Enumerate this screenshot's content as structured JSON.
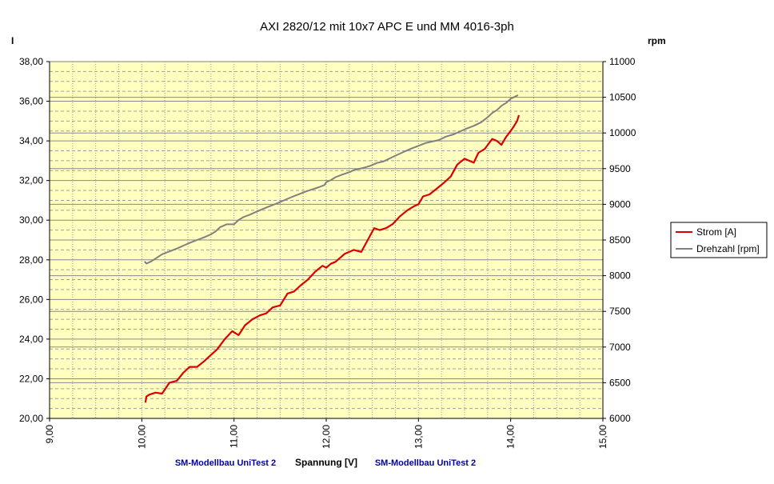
{
  "chart_data": {
    "type": "line",
    "title": "AXI 2820/12 mit 10x7 APC E und MM 4016-3ph",
    "xlabel": "Spannung [V]",
    "ylabel_left": "I",
    "ylabel_right": "rpm",
    "credit_left": "SM-Modellbau UniTest 2",
    "credit_right": "SM-Modellbau UniTest 2",
    "xlim": [
      9,
      15
    ],
    "ylim_left": [
      20,
      38
    ],
    "ylim_right": [
      6000,
      11000
    ],
    "x_ticks": [
      "9,00",
      "10,00",
      "11,00",
      "12,00",
      "13,00",
      "14,00",
      "15,00"
    ],
    "y_left_ticks": [
      "20,00",
      "22,00",
      "24,00",
      "26,00",
      "28,00",
      "30,00",
      "32,00",
      "34,00",
      "36,00",
      "38,00"
    ],
    "y_right_ticks": [
      "6000",
      "6500",
      "7000",
      "7500",
      "8000",
      "8500",
      "9000",
      "9500",
      "10000",
      "10500",
      "11000"
    ],
    "grid": true,
    "legend_position": "right",
    "plot_background": "#ffffc0",
    "series": [
      {
        "name": "Strom [A]",
        "axis": "left",
        "color": "#dd0000",
        "x": [
          10.04,
          10.05,
          10.08,
          10.15,
          10.22,
          10.3,
          10.38,
          10.45,
          10.52,
          10.6,
          10.68,
          10.75,
          10.82,
          10.9,
          10.98,
          11.05,
          11.12,
          11.2,
          11.28,
          11.35,
          11.42,
          11.5,
          11.58,
          11.65,
          11.72,
          11.8,
          11.88,
          11.96,
          12.0,
          12.05,
          12.1,
          12.15,
          12.2,
          12.3,
          12.38,
          12.45,
          12.52,
          12.58,
          12.65,
          12.72,
          12.8,
          12.88,
          12.95,
          13.0,
          13.05,
          13.12,
          13.2,
          13.28,
          13.35,
          13.42,
          13.5,
          13.55,
          13.6,
          13.65,
          13.72,
          13.8,
          13.85,
          13.9,
          13.95,
          14.0,
          14.03,
          14.07,
          14.09
        ],
        "y": [
          20.8,
          21.1,
          21.2,
          21.3,
          21.25,
          21.8,
          21.9,
          22.3,
          22.6,
          22.6,
          22.9,
          23.2,
          23.5,
          24.0,
          24.4,
          24.2,
          24.7,
          25.0,
          25.2,
          25.3,
          25.6,
          25.7,
          26.3,
          26.4,
          26.7,
          27.0,
          27.4,
          27.7,
          27.6,
          27.8,
          27.9,
          28.1,
          28.3,
          28.5,
          28.4,
          29.0,
          29.6,
          29.5,
          29.6,
          29.8,
          30.2,
          30.5,
          30.7,
          30.8,
          31.2,
          31.3,
          31.6,
          31.9,
          32.2,
          32.8,
          33.1,
          33.0,
          32.9,
          33.4,
          33.6,
          34.1,
          34.0,
          33.8,
          34.2,
          34.5,
          34.7,
          35.0,
          35.3
        ]
      },
      {
        "name": "Drehzahl [rpm]",
        "axis": "right",
        "color": "#808080",
        "x": [
          10.03,
          10.05,
          10.1,
          10.15,
          10.22,
          10.3,
          10.38,
          10.45,
          10.52,
          10.6,
          10.68,
          10.75,
          10.8,
          10.85,
          10.92,
          11.0,
          11.05,
          11.1,
          11.18,
          11.25,
          11.32,
          11.4,
          11.48,
          11.55,
          11.62,
          11.7,
          11.78,
          11.85,
          11.92,
          11.98,
          12.0,
          12.05,
          12.1,
          12.18,
          12.25,
          12.3,
          12.4,
          12.48,
          12.55,
          12.62,
          12.7,
          12.78,
          12.85,
          12.92,
          13.0,
          13.08,
          13.15,
          13.22,
          13.3,
          13.38,
          13.45,
          13.52,
          13.6,
          13.68,
          13.75,
          13.8,
          13.85,
          13.9,
          13.95,
          14.0,
          14.05,
          14.08
        ],
        "y": [
          8200,
          8170,
          8200,
          8240,
          8300,
          8340,
          8380,
          8420,
          8460,
          8500,
          8540,
          8580,
          8620,
          8680,
          8720,
          8720,
          8780,
          8820,
          8860,
          8900,
          8940,
          8980,
          9020,
          9060,
          9100,
          9140,
          9180,
          9210,
          9240,
          9270,
          9310,
          9340,
          9380,
          9420,
          9450,
          9480,
          9510,
          9540,
          9580,
          9600,
          9650,
          9700,
          9740,
          9780,
          9820,
          9860,
          9880,
          9900,
          9950,
          9980,
          10020,
          10060,
          10100,
          10150,
          10220,
          10280,
          10320,
          10380,
          10420,
          10480,
          10510,
          10530
        ]
      }
    ]
  }
}
